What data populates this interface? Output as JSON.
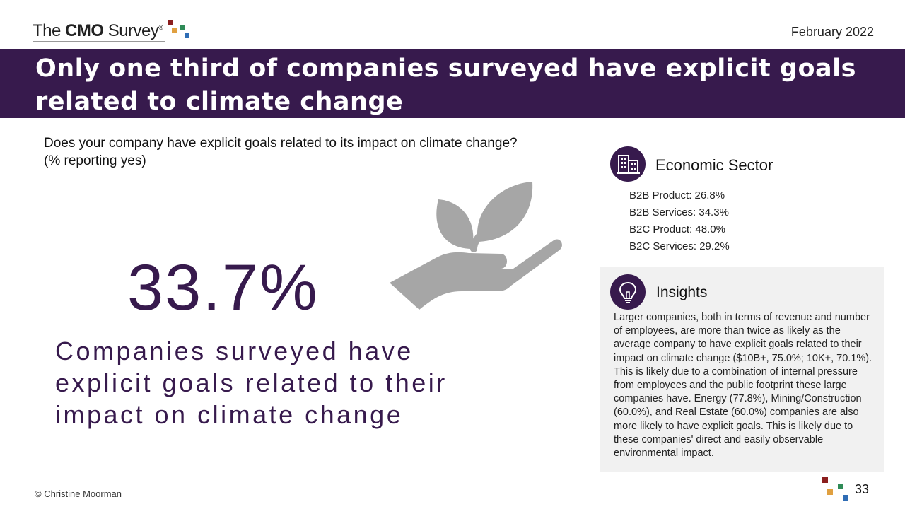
{
  "header": {
    "logo": {
      "the": "The",
      "cmo": "CMO",
      "survey": "Survey",
      "reg": "®"
    },
    "date": "February 2022"
  },
  "banner": {
    "title": "Only one third of companies surveyed have explicit goals related to climate change"
  },
  "question": {
    "line1": "Does your company have explicit goals related to its impact on climate change?",
    "line2": "(% reporting yes)"
  },
  "stat": {
    "value": "33.7%",
    "description": "Companies surveyed have explicit goals related to their impact on climate change"
  },
  "sector": {
    "title": "Economic Sector",
    "icon": "building-icon",
    "items": [
      "B2B Product: 26.8%",
      "B2B Services: 34.3%",
      "B2C Product: 48.0%",
      "B2C Services: 29.2%"
    ]
  },
  "insights": {
    "title": "Insights",
    "icon": "lightbulb-icon",
    "body": "Larger companies, both in terms of revenue and number of employees, are more than twice as likely as the average company to have explicit goals related to their impact on climate change ($10B+, 75.0%; 10K+, 70.1%). This is likely due to a combination of internal pressure from employees and the public footprint these large companies have. Energy (77.8%), Mining/Construction (60.0%), and Real Estate (60.0%) companies are also more likely to have explicit goals. This is likely due to these companies' direct and easily observable environmental impact."
  },
  "footer": {
    "copyright": "© Christine Moorman",
    "page": "33"
  },
  "colors": {
    "brand_purple": "#371a4d",
    "plant_gray": "#a6a6a6",
    "panel_gray": "#f1f1f1",
    "logo_squares": [
      "#8b1e1e",
      "#e0a040",
      "#2e8b57",
      "#2f6db5"
    ]
  }
}
